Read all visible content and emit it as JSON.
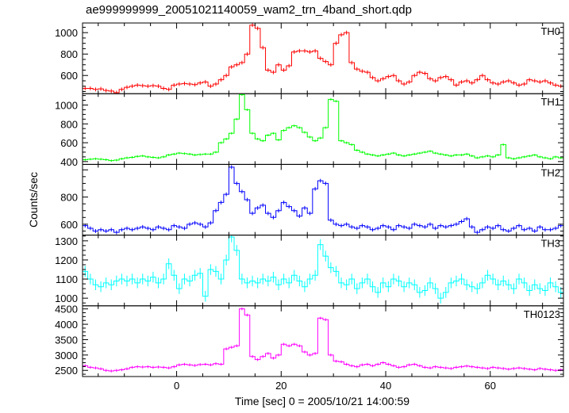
{
  "chart_data": {
    "type": "line",
    "style": "step-with-error-bars",
    "title": "ae999999999_20051021140059_wam2_trn_4band_short.qdp",
    "xlabel": "Time [sec] 0 = 2005/10/21 14:00:59",
    "ylabel": "Counts/sec",
    "xlim": [
      -18,
      74
    ],
    "x_ticks": [
      0,
      20,
      40,
      60
    ],
    "x_tick_labels": [
      "0",
      "20",
      "40",
      "60"
    ],
    "grid": false,
    "bin_width": 1,
    "panels": [
      {
        "name": "TH0",
        "color": "#ff0000",
        "ylim": [
          430,
          1090
        ],
        "y_ticks": [
          600,
          800,
          1000
        ],
        "y_tick_labels": [
          "600",
          "800",
          "1000"
        ],
        "error": 18,
        "values": [
          480,
          480,
          470,
          475,
          460,
          455,
          440,
          470,
          490,
          500,
          510,
          505,
          500,
          505,
          500,
          480,
          470,
          510,
          520,
          525,
          520,
          515,
          530,
          540,
          500,
          520,
          560,
          600,
          680,
          700,
          720,
          800,
          1070,
          1040,
          860,
          650,
          630,
          700,
          650,
          690,
          820,
          830,
          830,
          820,
          830,
          760,
          730,
          700,
          900,
          980,
          1000,
          720,
          660,
          640,
          630,
          580,
          550,
          570,
          590,
          600,
          550,
          520,
          540,
          600,
          630,
          620,
          570,
          550,
          580,
          590,
          560,
          510,
          540,
          550,
          530,
          560,
          600,
          560,
          530,
          520,
          540,
          550,
          530,
          510,
          520,
          560,
          550,
          540,
          550,
          530,
          510,
          500,
          480,
          470,
          480,
          490,
          480,
          470,
          480,
          490,
          470,
          480,
          470,
          480,
          470,
          490,
          510,
          470,
          480,
          470,
          480,
          500,
          470,
          480,
          480,
          470,
          460,
          470,
          480,
          490,
          500,
          490,
          480,
          470,
          480,
          460,
          470,
          480,
          470,
          460,
          470,
          480,
          470
        ]
      },
      {
        "name": "TH1",
        "color": "#00ff00",
        "ylim": [
          370,
          1120
        ],
        "y_ticks": [
          400,
          600,
          800,
          1000
        ],
        "y_tick_labels": [
          "400",
          "600",
          "800",
          "1000"
        ],
        "error": 12,
        "values": [
          420,
          425,
          430,
          425,
          420,
          410,
          415,
          430,
          440,
          445,
          455,
          460,
          450,
          445,
          440,
          450,
          470,
          480,
          490,
          485,
          480,
          470,
          475,
          480,
          480,
          500,
          600,
          640,
          700,
          850,
          1110,
          950,
          700,
          640,
          620,
          680,
          700,
          630,
          730,
          760,
          780,
          760,
          710,
          660,
          620,
          650,
          760,
          1060,
          1040,
          620,
          600,
          580,
          520,
          500,
          480,
          470,
          460,
          470,
          480,
          490,
          470,
          460,
          470,
          480,
          490,
          500,
          510,
          490,
          480,
          470,
          460,
          470,
          470,
          480,
          460,
          440,
          450,
          460,
          450,
          470,
          580,
          440,
          430,
          440,
          450,
          460,
          470,
          450,
          440,
          430,
          450,
          440,
          430,
          420,
          430,
          420,
          410,
          440,
          430,
          420,
          410,
          420,
          430,
          400,
          410,
          420,
          430,
          430,
          410,
          420,
          410,
          430,
          420,
          410,
          400,
          410,
          420,
          400,
          410,
          400,
          410,
          420,
          410,
          400,
          400,
          410,
          400,
          410,
          400,
          410,
          400,
          400,
          410
        ]
      },
      {
        "name": "TH2",
        "color": "#0000ff",
        "ylim": [
          520,
          1040
        ],
        "y_ticks": [
          600,
          800
        ],
        "y_tick_labels": [
          "600",
          "800"
        ],
        "error": 14,
        "values": [
          590,
          570,
          550,
          560,
          550,
          560,
          540,
          560,
          570,
          560,
          570,
          580,
          570,
          560,
          580,
          570,
          560,
          590,
          580,
          570,
          600,
          610,
          600,
          580,
          610,
          700,
          760,
          820,
          1020,
          900,
          840,
          780,
          680,
          720,
          740,
          680,
          650,
          700,
          760,
          730,
          700,
          660,
          720,
          680,
          860,
          920,
          900,
          630,
          600,
          590,
          600,
          580,
          570,
          590,
          580,
          560,
          570,
          590,
          580,
          560,
          590,
          580,
          570,
          600,
          590,
          580,
          600,
          570,
          590,
          580,
          590,
          600,
          620,
          640,
          580,
          540,
          560,
          580,
          570,
          590,
          560,
          550,
          570,
          590,
          560,
          570,
          550,
          580,
          560,
          560,
          570,
          590,
          550,
          560,
          540,
          560,
          570,
          560,
          550,
          570,
          580,
          560,
          550,
          570,
          560,
          590,
          610,
          590,
          560,
          550,
          570,
          560,
          560,
          620,
          580,
          570,
          550,
          560,
          540,
          560,
          570,
          550,
          560,
          550,
          580,
          560,
          550,
          560,
          570,
          550,
          560,
          560,
          550
        ]
      },
      {
        "name": "TH3",
        "color": "#00ffff",
        "ylim": [
          960,
          1330
        ],
        "y_ticks": [
          1000,
          1100,
          1200,
          1300
        ],
        "y_tick_labels": [
          "1000",
          "1100",
          "1200",
          "1300"
        ],
        "error": 28,
        "values": [
          1140,
          1100,
          1070,
          1060,
          1080,
          1070,
          1090,
          1100,
          1090,
          1100,
          1080,
          1100,
          1090,
          1110,
          1080,
          1100,
          1180,
          1120,
          1050,
          1100,
          1090,
          1120,
          1130,
          1010,
          1150,
          1140,
          1100,
          1200,
          1320,
          1250,
          1100,
          1080,
          1090,
          1080,
          1100,
          1090,
          1110,
          1070,
          1100,
          1080,
          1120,
          1090,
          1060,
          1100,
          1120,
          1280,
          1220,
          1160,
          1140,
          1080,
          1070,
          1100,
          1050,
          1080,
          1100,
          1060,
          1030,
          1080,
          1060,
          1100,
          1090,
          1060,
          1080,
          1070,
          1030,
          1040,
          1080,
          1050,
          1000,
          1030,
          1080,
          1090,
          1100,
          1070,
          1060,
          1050,
          1080,
          1120,
          1100,
          1070,
          1090,
          1070,
          1050,
          1100,
          1080,
          1040,
          1070,
          1050,
          1040,
          1080,
          1060,
          1030,
          1090,
          1120,
          1080,
          1020,
          1050,
          1060,
          1070,
          1030,
          1010,
          1080,
          1050,
          1040,
          1070,
          1060,
          1040,
          1050,
          1070,
          1080,
          1040,
          1060,
          1050,
          1080,
          1060,
          1030,
          1050,
          1040,
          1060,
          1070,
          1060,
          1050,
          1090,
          1080,
          1070,
          980
        ]
      },
      {
        "name": "TH0123",
        "color": "#ff00ff",
        "ylim": [
          2300,
          4600
        ],
        "y_ticks": [
          2500,
          3000,
          3500,
          4000,
          4500
        ],
        "y_tick_labels": [
          "2500",
          "3000",
          "3500",
          "4000",
          "4500"
        ],
        "error": 45,
        "values": [
          2650,
          2600,
          2580,
          2550,
          2500,
          2480,
          2500,
          2520,
          2550,
          2600,
          2620,
          2610,
          2620,
          2600,
          2610,
          2600,
          2580,
          2620,
          2680,
          2700,
          2680,
          2660,
          2690,
          2700,
          2680,
          2720,
          2700,
          3200,
          3250,
          3300,
          4500,
          4300,
          2950,
          2850,
          2950,
          3050,
          2900,
          3000,
          3350,
          3300,
          3350,
          3300,
          3100,
          3000,
          3050,
          4200,
          4150,
          3000,
          2800,
          2780,
          2700,
          2650,
          2620,
          2680,
          2700,
          2650,
          2700,
          2750,
          2700,
          2650,
          2600,
          2620,
          2680,
          2700,
          2650,
          2600,
          2580,
          2620,
          2600,
          2580,
          2560,
          2600,
          2620,
          2640,
          2620,
          2600,
          2580,
          2560,
          2600,
          2580,
          2560,
          2540,
          2560,
          2580,
          2560,
          2540,
          2520,
          2560,
          2540,
          2520,
          2500,
          2520,
          2480,
          2500,
          2520,
          2500,
          2480,
          2500,
          2480,
          2460,
          2500,
          2480,
          2500,
          2470,
          2480,
          2500,
          2490,
          2480,
          2460,
          2480,
          2470,
          2480,
          2470,
          2460,
          2450,
          2470,
          2480,
          2460,
          2450,
          2470,
          2460,
          2480,
          2470,
          2450,
          2440,
          2460,
          2450,
          2440,
          2460,
          2450,
          2440,
          2450,
          2460
        ]
      }
    ]
  }
}
